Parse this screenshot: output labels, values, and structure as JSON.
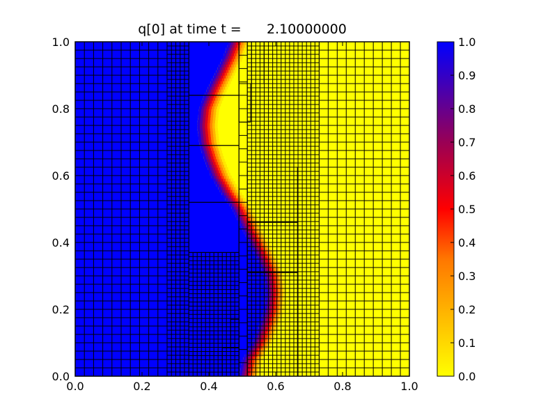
{
  "chart_data": {
    "type": "heatmap",
    "title": "q[0] at time t =      2.10000000",
    "xlabel": "",
    "ylabel": "",
    "xlim": [
      0.0,
      1.0
    ],
    "ylim": [
      0.0,
      1.0
    ],
    "x_ticks": [
      "0.0",
      "0.2",
      "0.4",
      "0.6",
      "0.8",
      "1.0"
    ],
    "y_ticks": [
      "0.0",
      "0.2",
      "0.4",
      "0.6",
      "0.8",
      "1.0"
    ],
    "colorbar": {
      "min": 0.0,
      "max": 1.0,
      "ticks": [
        "0.0",
        "0.1",
        "0.2",
        "0.3",
        "0.4",
        "0.5",
        "0.6",
        "0.7",
        "0.8",
        "0.9",
        "1.0"
      ],
      "colormap": [
        {
          "value": 0.0,
          "color": "#ffff00"
        },
        {
          "value": 0.35,
          "color": "#ff7700"
        },
        {
          "value": 0.5,
          "color": "#ff0000"
        },
        {
          "value": 0.7,
          "color": "#990055"
        },
        {
          "value": 1.0,
          "color": "#0000ff"
        }
      ]
    },
    "field": {
      "description_of_values": "q=1 left of a sinusoidal interface, q=0 right of it",
      "interface_x_at_y": [
        [
          0.0,
          0.52
        ],
        [
          0.05,
          0.53
        ],
        [
          0.1,
          0.56
        ],
        [
          0.15,
          0.58
        ],
        [
          0.2,
          0.595
        ],
        [
          0.25,
          0.6
        ],
        [
          0.3,
          0.595
        ],
        [
          0.35,
          0.575
        ],
        [
          0.4,
          0.55
        ],
        [
          0.45,
          0.525
        ],
        [
          0.5,
          0.5
        ],
        [
          0.55,
          0.465
        ],
        [
          0.6,
          0.435
        ],
        [
          0.65,
          0.415
        ],
        [
          0.7,
          0.4
        ],
        [
          0.75,
          0.395
        ],
        [
          0.8,
          0.4
        ],
        [
          0.85,
          0.42
        ],
        [
          0.9,
          0.445
        ],
        [
          0.95,
          0.47
        ],
        [
          1.0,
          0.49
        ]
      ],
      "interface_width": 0.03
    },
    "amr_patches": [
      {
        "x0": 0.0,
        "x1": 0.275,
        "y0": 0.0,
        "y1": 1.0,
        "dx": 0.0275,
        "dy": 0.025
      },
      {
        "x0": 0.275,
        "x1": 0.34,
        "y0": 0.0,
        "y1": 1.0,
        "dx": 0.0125,
        "dy": 0.0125
      },
      {
        "x0": 0.34,
        "x1": 0.49,
        "y0": 0.0,
        "y1": 0.37,
        "dx": 0.0125,
        "dy": 0.0125
      },
      {
        "x0": 0.34,
        "x1": 0.49,
        "y0": 0.37,
        "y1": 0.52,
        "dx": 0.15,
        "dy": 0.15
      },
      {
        "x0": 0.34,
        "x1": 0.49,
        "y0": 0.52,
        "y1": 0.69,
        "dx": 0.15,
        "dy": 0.17
      },
      {
        "x0": 0.34,
        "x1": 0.49,
        "y0": 0.69,
        "y1": 0.84,
        "dx": 0.15,
        "dy": 0.15
      },
      {
        "x0": 0.34,
        "x1": 0.49,
        "y0": 0.84,
        "y1": 1.0,
        "dx": 0.15,
        "dy": 0.16
      },
      {
        "x0": 0.49,
        "x1": 0.515,
        "y0": 0.0,
        "y1": 1.0,
        "dx": 0.025,
        "dy": 0.04
      },
      {
        "x0": 0.515,
        "x1": 0.73,
        "y0": 0.0,
        "y1": 1.0,
        "dx": 0.0125,
        "dy": 0.0125
      },
      {
        "x0": 0.73,
        "x1": 1.0,
        "y0": 0.0,
        "y1": 1.0,
        "dx": 0.0275,
        "dy": 0.025
      },
      {
        "x0": 0.515,
        "x1": 0.665,
        "y0": 0.0,
        "y1": 0.15,
        "dx": 0.15,
        "dy": 0.15
      },
      {
        "x0": 0.515,
        "x1": 0.665,
        "y0": 0.15,
        "y1": 0.31,
        "dx": 0.15,
        "dy": 0.16
      },
      {
        "x0": 0.515,
        "x1": 0.665,
        "y0": 0.31,
        "y1": 0.46,
        "dx": 0.15,
        "dy": 0.15
      },
      {
        "x0": 0.515,
        "x1": 0.665,
        "y0": 0.46,
        "y1": 0.5,
        "dx": 0.15,
        "dy": 0.04
      },
      {
        "x0": 0.515,
        "x1": 0.665,
        "y0": 0.5,
        "y1": 0.625,
        "dx": 0.15,
        "dy": 0.125
      },
      {
        "x0": 0.49,
        "x1": 0.565,
        "y0": 0.875,
        "y1": 1.0,
        "dx": 0.04,
        "dy": 0.125
      },
      {
        "x0": 0.49,
        "x1": 0.525,
        "y0": 0.76,
        "y1": 0.875,
        "dx": 0.035,
        "dy": 0.115
      },
      {
        "x0": 0.44,
        "x1": 0.49,
        "y0": 0.0,
        "y1": 0.085,
        "dx": 0.05,
        "dy": 0.085
      },
      {
        "x0": 0.465,
        "x1": 0.49,
        "y0": 0.085,
        "y1": 0.17,
        "dx": 0.025,
        "dy": 0.085
      }
    ]
  }
}
